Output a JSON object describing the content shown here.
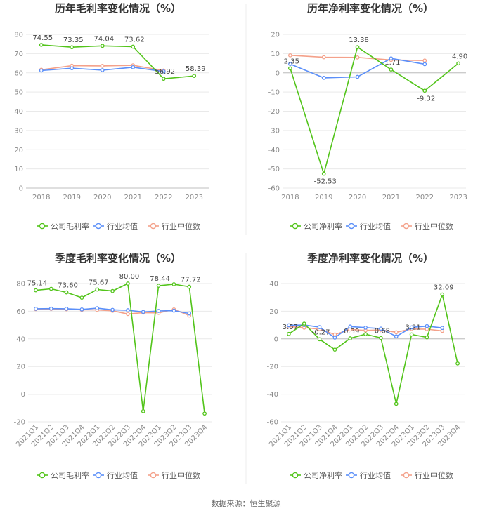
{
  "source": "数据来源：恒生聚源",
  "colors": {
    "company": "#52c41a",
    "industry_avg": "#5b8ff9",
    "industry_median": "#f4a18a",
    "grid": "#e9e9e9",
    "axis": "#cccccc"
  },
  "chart_data": [
    {
      "type": "line",
      "title": "历年毛利率变化情况（%）",
      "categories": [
        "2018",
        "2019",
        "2020",
        "2021",
        "2022",
        "2023"
      ],
      "ylim": [
        0,
        80
      ],
      "yticks": [
        0,
        10,
        20,
        30,
        40,
        50,
        60,
        70,
        80
      ],
      "rotate_x": false,
      "series": [
        {
          "name": "公司毛利率",
          "key": "company",
          "values": [
            74.55,
            73.35,
            74.04,
            73.62,
            56.92,
            58.39
          ]
        },
        {
          "name": "行业均值",
          "key": "industry_avg",
          "values": [
            61.2,
            62.4,
            61.4,
            62.9,
            60.7,
            null
          ]
        },
        {
          "name": "行业中位数",
          "key": "industry_median",
          "values": [
            61.6,
            63.7,
            63.6,
            63.9,
            61.2,
            null
          ]
        }
      ],
      "labels": [
        {
          "i": 0,
          "text": "74.55"
        },
        {
          "i": 1,
          "text": "73.35"
        },
        {
          "i": 2,
          "text": "74.04"
        },
        {
          "i": 3,
          "text": "73.62"
        },
        {
          "i": 4,
          "text": "56.92"
        },
        {
          "i": 5,
          "text": "58.39"
        }
      ]
    },
    {
      "type": "line",
      "title": "历年净利率变化情况（%）",
      "categories": [
        "2018",
        "2019",
        "2020",
        "2021",
        "2022",
        "2023"
      ],
      "ylim": [
        -60,
        20
      ],
      "yticks": [
        -60,
        -50,
        -40,
        -30,
        -20,
        -10,
        0,
        10,
        20
      ],
      "rotate_x": false,
      "series": [
        {
          "name": "公司净利率",
          "key": "company",
          "values": [
            2.35,
            -52.53,
            13.38,
            1.71,
            -9.32,
            4.9
          ]
        },
        {
          "name": "行业均值",
          "key": "industry_avg",
          "values": [
            4.6,
            -2.6,
            -2.1,
            7.5,
            4.5,
            null
          ]
        },
        {
          "name": "行业中位数",
          "key": "industry_median",
          "values": [
            9.1,
            8.1,
            8.0,
            6.7,
            6.4,
            null
          ]
        }
      ],
      "labels": [
        {
          "i": 0,
          "text": "2.35"
        },
        {
          "i": 1,
          "text": "-52.53"
        },
        {
          "i": 2,
          "text": "13.38"
        },
        {
          "i": 3,
          "text": "1.71"
        },
        {
          "i": 4,
          "text": "-9.32"
        },
        {
          "i": 5,
          "text": "4.90"
        }
      ]
    },
    {
      "type": "line",
      "title": "季度毛利率变化情况（%）",
      "categories": [
        "2021Q1",
        "2021Q2",
        "2021Q3",
        "2021Q4",
        "2022Q1",
        "2022Q2",
        "2022Q3",
        "2022Q4",
        "2023Q1",
        "2023Q2",
        "2023Q3",
        "2023Q4"
      ],
      "ylim": [
        -20,
        80
      ],
      "yticks": [
        -20,
        0,
        20,
        40,
        60,
        80
      ],
      "rotate_x": true,
      "series": [
        {
          "name": "公司毛利率",
          "key": "company",
          "values": [
            75.14,
            76.2,
            73.6,
            69.8,
            75.67,
            74.6,
            80.0,
            -12.3,
            78.44,
            79.5,
            77.72,
            -14.0
          ]
        },
        {
          "name": "行业均值",
          "key": "industry_avg",
          "values": [
            61.8,
            61.9,
            61.8,
            61.3,
            62.2,
            61.0,
            60.7,
            59.5,
            60.2,
            60.4,
            58.4,
            null
          ]
        },
        {
          "name": "行业中位数",
          "key": "industry_median",
          "values": [
            61.5,
            61.7,
            61.4,
            61.0,
            60.9,
            60.3,
            58.0,
            59.0,
            58.8,
            61.3,
            56.9,
            null
          ]
        }
      ],
      "labels": [
        {
          "i": 0,
          "text": "75.14"
        },
        {
          "i": 2,
          "text": "73.60"
        },
        {
          "i": 4,
          "text": "75.67"
        },
        {
          "i": 6,
          "text": "80.00"
        },
        {
          "i": 8,
          "text": "78.44"
        },
        {
          "i": 10,
          "text": "77.72"
        }
      ]
    },
    {
      "type": "line",
      "title": "季度净利率变化情况（%）",
      "categories": [
        "2021Q1",
        "2021Q2",
        "2021Q3",
        "2021Q4",
        "2022Q1",
        "2022Q2",
        "2022Q3",
        "2022Q4",
        "2023Q1",
        "2023Q2",
        "2023Q3",
        "2023Q4"
      ],
      "ylim": [
        -60,
        40
      ],
      "yticks": [
        -60,
        -40,
        -20,
        0,
        20,
        40
      ],
      "rotate_x": true,
      "series": [
        {
          "name": "公司净利率",
          "key": "company",
          "values": [
            3.57,
            11.0,
            -0.27,
            -7.8,
            0.39,
            3.4,
            0.68,
            -47.0,
            3.21,
            1.1,
            32.09,
            -17.8
          ]
        },
        {
          "name": "行业均值",
          "key": "industry_avg",
          "values": [
            9.8,
            10.0,
            8.5,
            0.9,
            8.9,
            8.1,
            7.4,
            1.8,
            8.3,
            9.2,
            7.9,
            null
          ]
        },
        {
          "name": "行业中位数",
          "key": "industry_median",
          "values": [
            8.9,
            8.1,
            7.0,
            3.2,
            6.8,
            6.1,
            6.5,
            4.8,
            7.1,
            7.0,
            5.8,
            null
          ]
        }
      ],
      "labels": [
        {
          "i": 0,
          "text": "3.57"
        },
        {
          "i": 2,
          "text": "-0.27"
        },
        {
          "i": 4,
          "text": "0.39"
        },
        {
          "i": 6,
          "text": "0.68"
        },
        {
          "i": 8,
          "text": "3.21"
        },
        {
          "i": 10,
          "text": "32.09"
        }
      ]
    }
  ]
}
